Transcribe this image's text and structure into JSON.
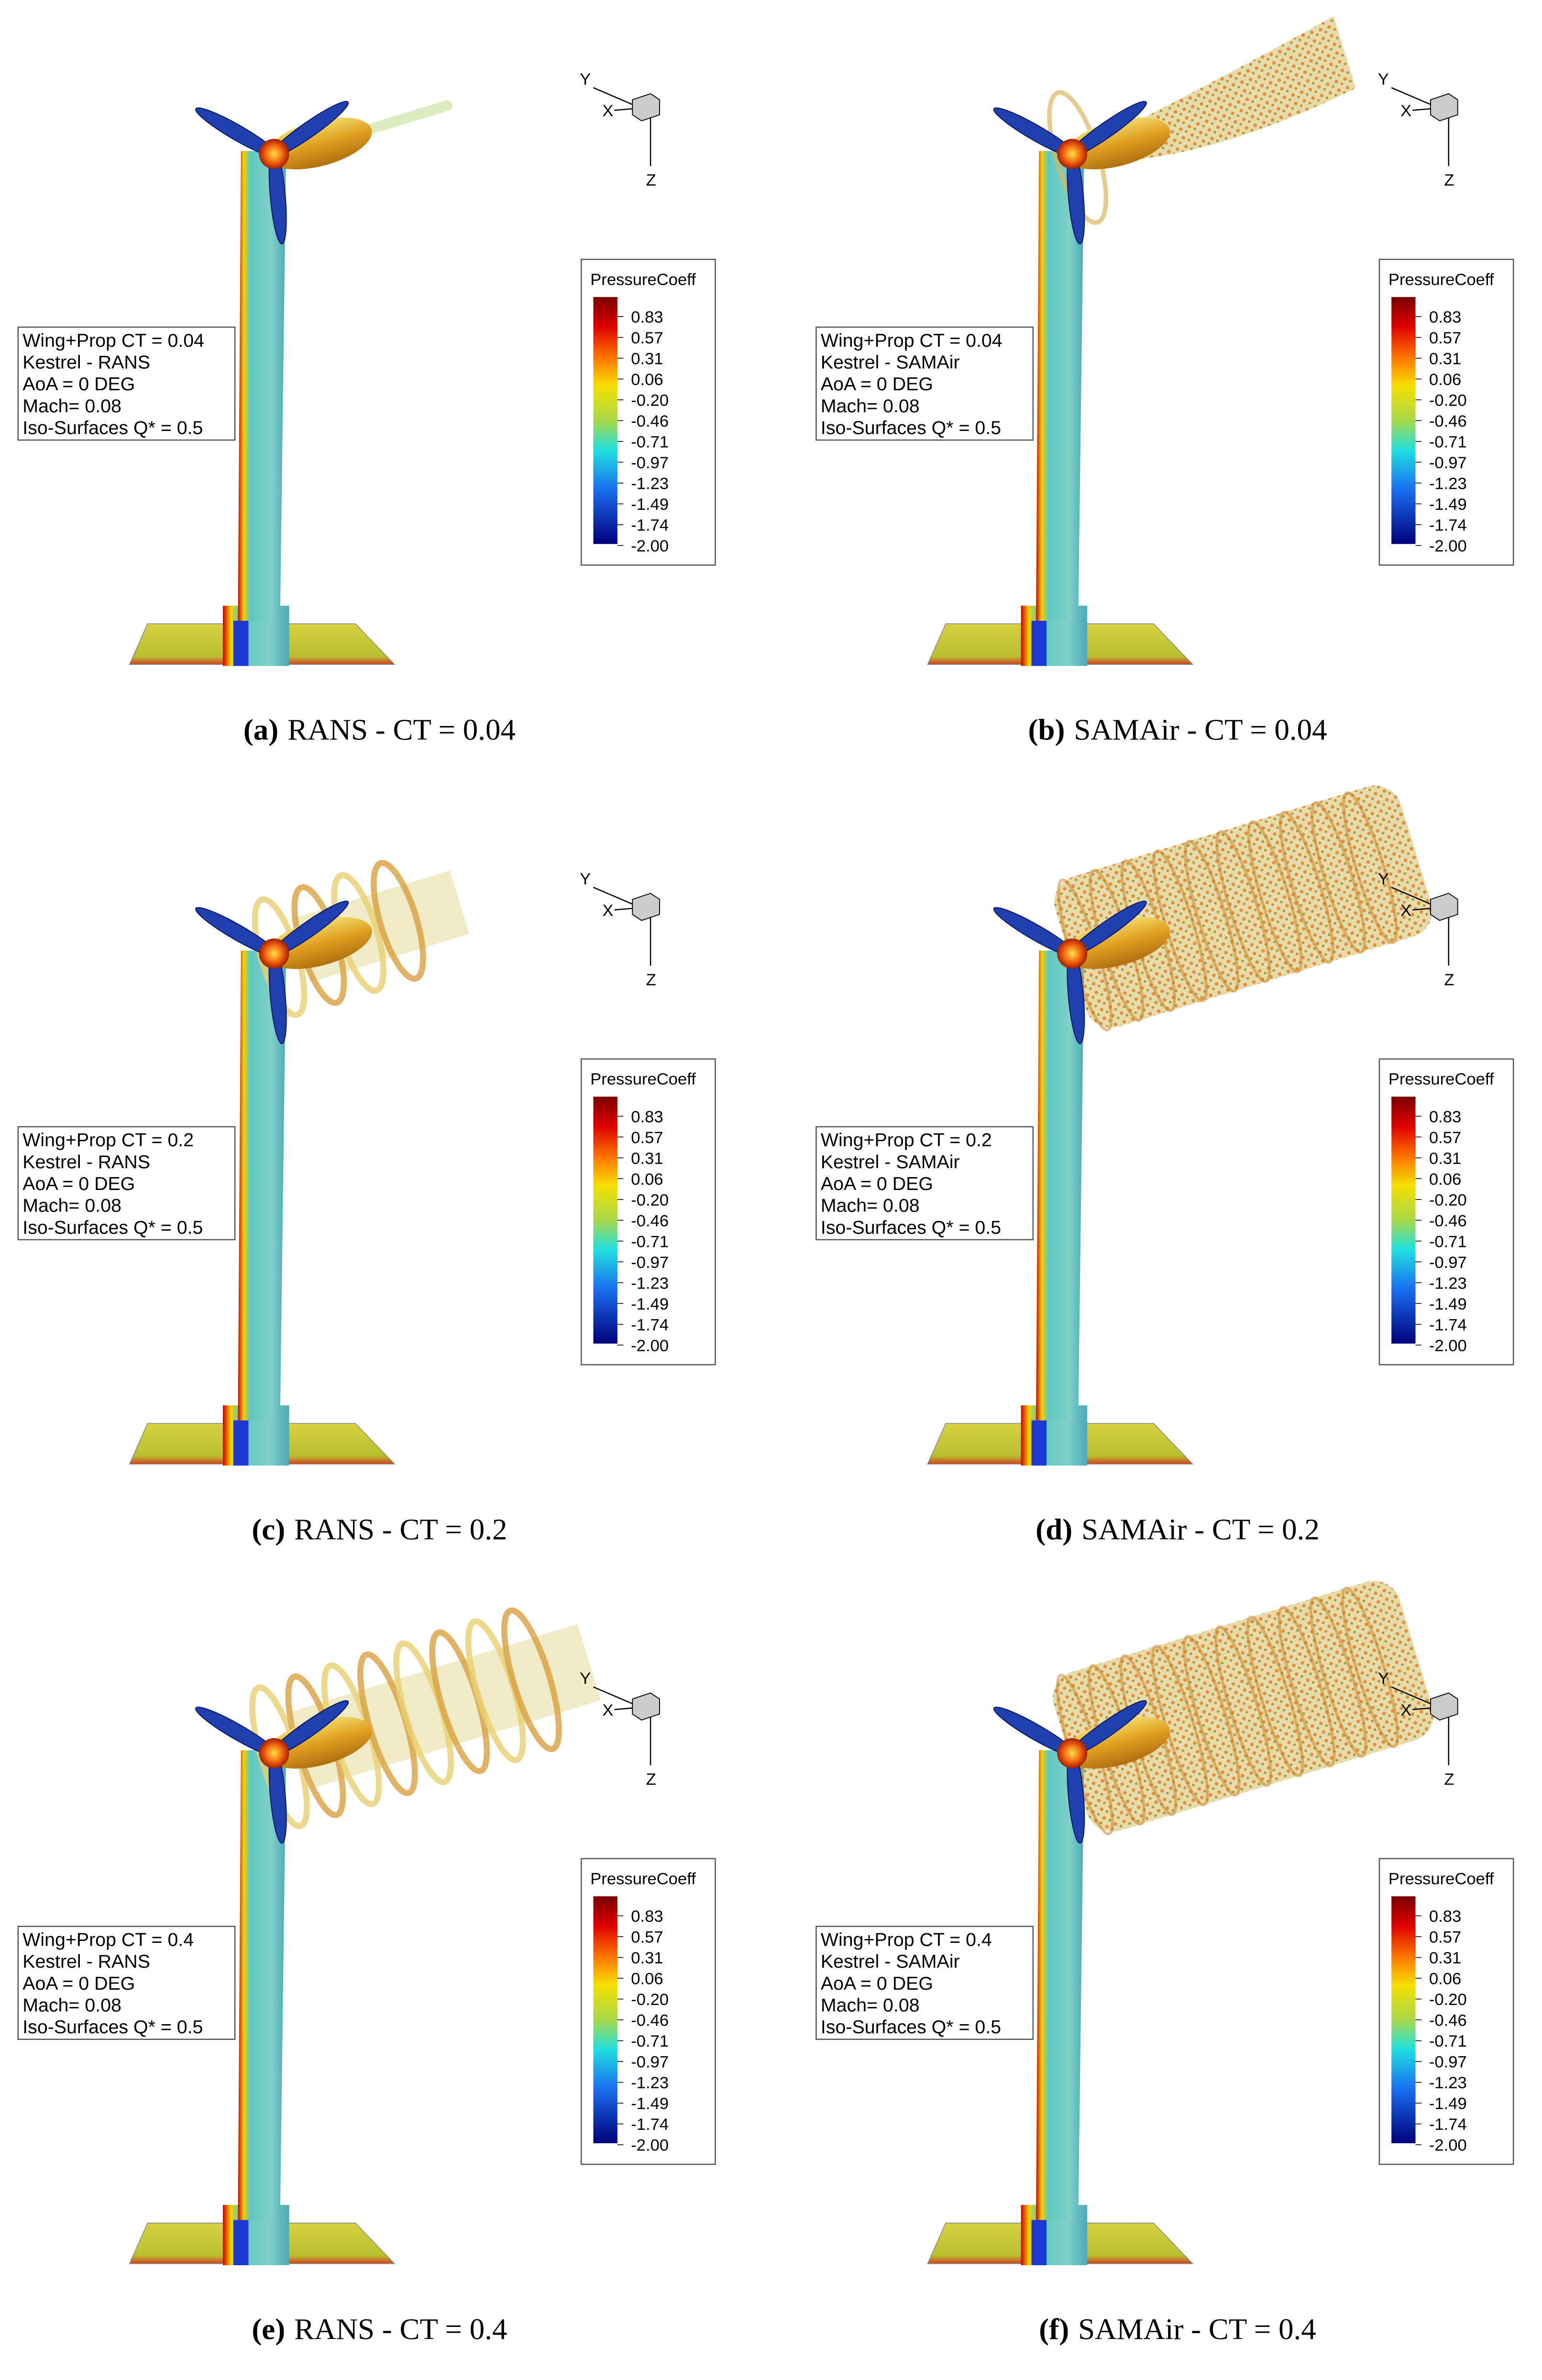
{
  "axes": {
    "y": "Y",
    "x": "X",
    "z": "Z"
  },
  "colorbar": {
    "title": "PressureCoeff",
    "labels": [
      "0.83",
      "0.57",
      "0.31",
      "0.06",
      "-0.20",
      "-0.46",
      "-0.71",
      "-0.97",
      "-1.23",
      "-1.49",
      "-1.74",
      "-2.00"
    ]
  },
  "panels": [
    {
      "label": "(a)",
      "caption": "RANS - CT = 0.04",
      "info": [
        "Wing+Prop CT = 0.04",
        "Kestrel - RANS",
        "AoA =  0 DEG",
        "Mach= 0.08",
        "Iso-Surfaces Q* =  0.5"
      ]
    },
    {
      "label": "(b)",
      "caption": "SAMAir - CT = 0.04",
      "info": [
        "Wing+Prop CT = 0.04",
        "Kestrel - SAMAir",
        "AoA =  0 DEG",
        "Mach= 0.08",
        "Iso-Surfaces Q* =  0.5"
      ]
    },
    {
      "label": "(c)",
      "caption": "RANS - CT = 0.2",
      "info": [
        "Wing+Prop CT = 0.2",
        "Kestrel - RANS",
        "AoA =  0 DEG",
        "Mach= 0.08",
        "Iso-Surfaces Q* =  0.5"
      ]
    },
    {
      "label": "(d)",
      "caption": "SAMAir - CT = 0.2",
      "info": [
        "Wing+Prop CT = 0.2",
        "Kestrel - SAMAir",
        "AoA =  0 DEG",
        "Mach= 0.08",
        "Iso-Surfaces Q* =  0.5"
      ]
    },
    {
      "label": "(e)",
      "caption": "RANS - CT = 0.4",
      "info": [
        "Wing+Prop CT = 0.4",
        "Kestrel - RANS",
        "AoA =  0 DEG",
        "Mach= 0.08",
        "Iso-Surfaces Q* =  0.5"
      ]
    },
    {
      "label": "(f)",
      "caption": "SAMAir - CT = 0.4",
      "info": [
        "Wing+Prop CT = 0.4",
        "Kestrel - SAMAir",
        "AoA =  0 DEG",
        "Mach= 0.08",
        "Iso-Surfaces Q* =  0.5"
      ]
    }
  ]
}
